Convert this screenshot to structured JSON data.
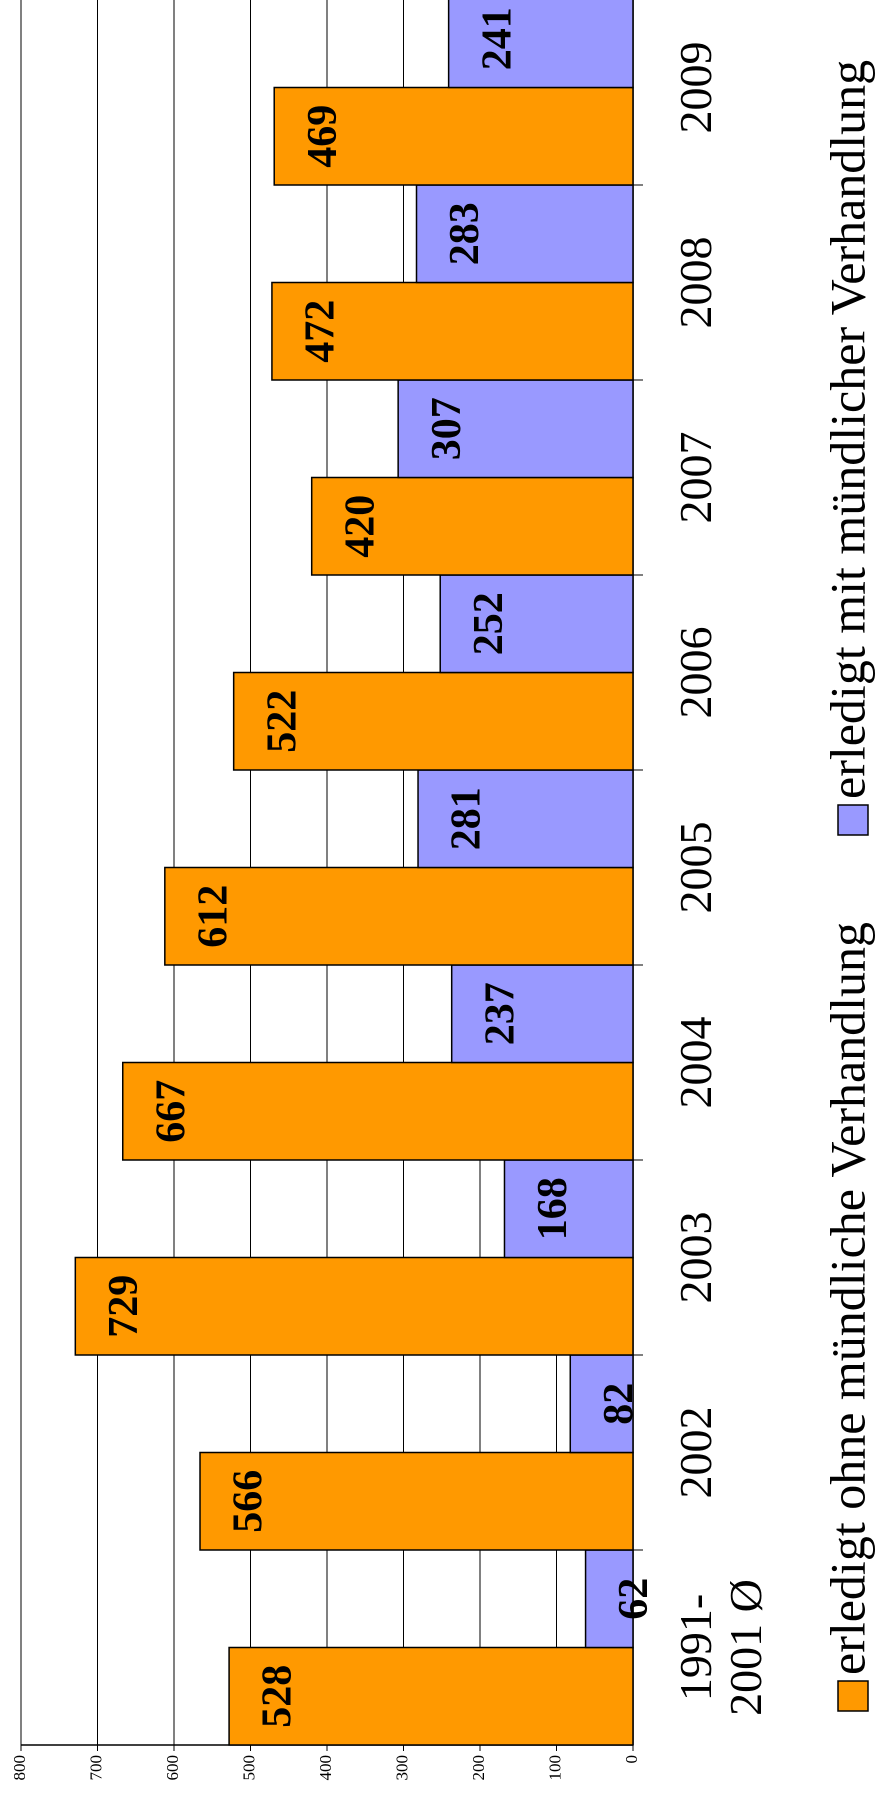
{
  "chart_data": {
    "type": "bar",
    "categories": [
      "1991- 2001 Ø",
      "2002",
      "2003",
      "2004",
      "2005",
      "2006",
      "2007",
      "2008",
      "2009"
    ],
    "series": [
      {
        "name": "erledigt ohne mündliche Verhandlung",
        "color": "#ff9900",
        "values": [
          528,
          566,
          729,
          667,
          612,
          522,
          420,
          472,
          469
        ]
      },
      {
        "name": "erledigt mit mündlicher Verhandlung",
        "color": "#9999ff",
        "values": [
          62,
          82,
          168,
          237,
          281,
          252,
          307,
          283,
          241
        ]
      }
    ],
    "ylim": [
      0,
      800
    ],
    "yticks": [
      0,
      100,
      200,
      300,
      400,
      500,
      600,
      700,
      800
    ],
    "grid": true,
    "legend": "bottom"
  }
}
